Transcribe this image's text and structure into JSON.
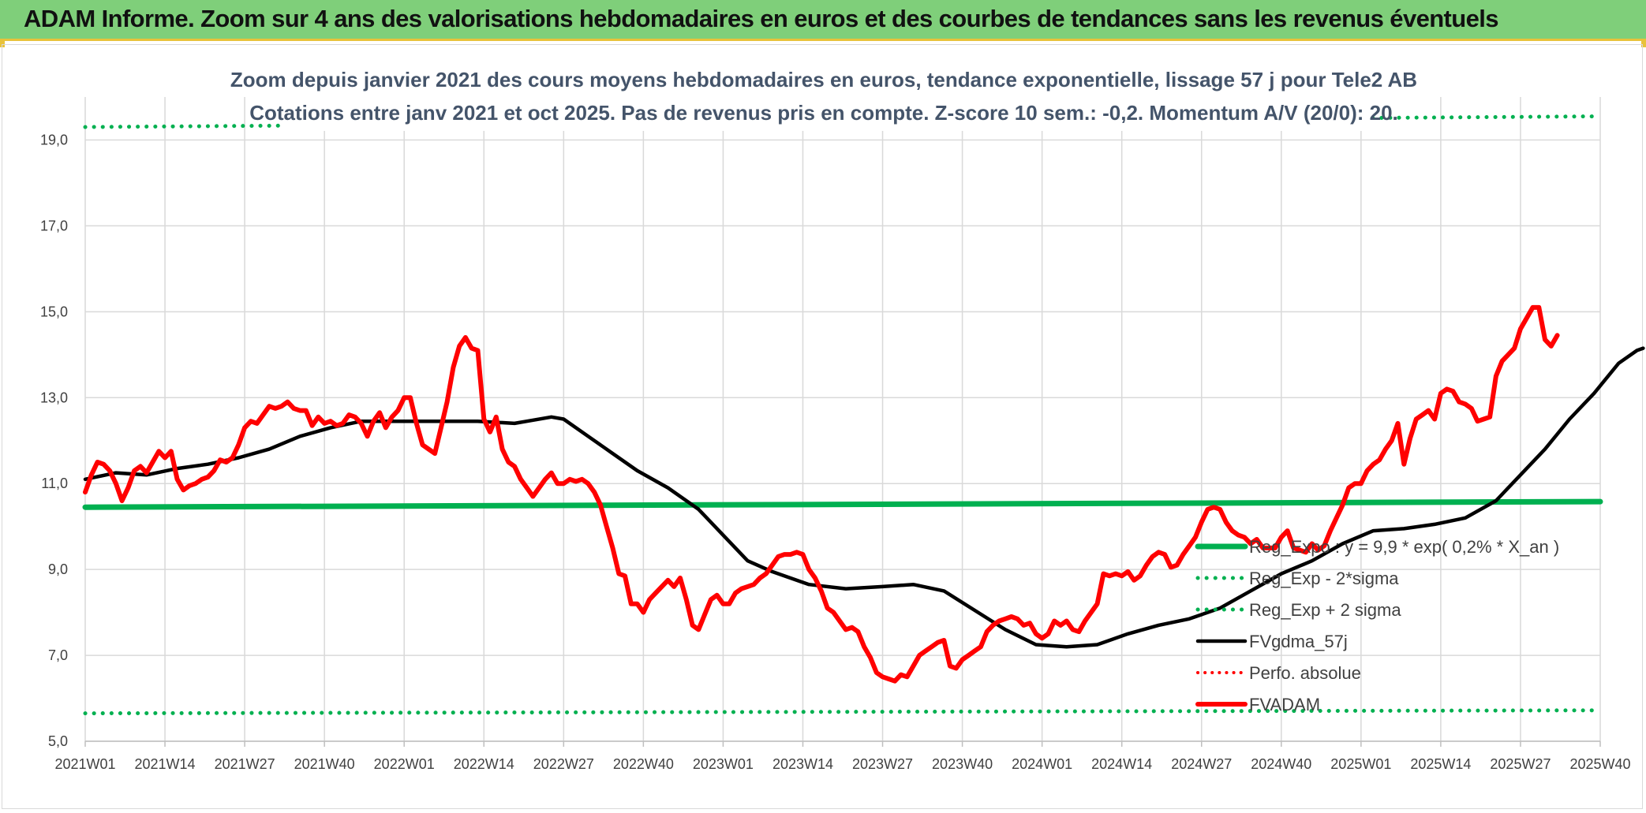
{
  "banner": {
    "title": "ADAM Informe. Zoom sur 4 ans des valorisations hebdomadaires en euros et des courbes de tendances sans les revenus éventuels"
  },
  "colors": {
    "banner_bg": "#7fcf7a",
    "accent_line": "#e8c23a",
    "regression": "#00b050",
    "fvgdma": "#000000",
    "fvadam": "#ff0000",
    "perfo": "#ff0000",
    "title_text": "#44546a"
  },
  "chart_data": {
    "type": "line",
    "title": "Zoom depuis janvier 2021 des cours moyens hebdomadaires en euros, tendance exponentielle, lissage 57 j pour Tele2 AB",
    "subtitle": "Cotations entre janv 2021 et oct 2025. Pas de revenus pris en compte. Z-score 10 sem.: -0,2. Momentum A/V (20/0): 20.",
    "x_tick_labels": [
      "2021W01",
      "2021W14",
      "2021W27",
      "2021W40",
      "2022W01",
      "2022W14",
      "2022W27",
      "2022W40",
      "2023W01",
      "2023W14",
      "2023W27",
      "2023W40",
      "2024W01",
      "2024W14",
      "2024W27",
      "2024W40",
      "2025W01",
      "2025W14",
      "2025W27",
      "2025W40"
    ],
    "y_tick_labels": [
      "5,0",
      "7,0",
      "9,0",
      "11,0",
      "13,0",
      "15,0",
      "17,0",
      "19,0"
    ],
    "ylim": [
      5,
      20
    ],
    "grid": true,
    "legend_position": "bottom-right",
    "weeks_total": 247,
    "series": [
      {
        "name": "Reg_Expo : y = 9,9 * exp( 0,2% *  X_an )",
        "color": "#00b050",
        "style": "solid",
        "points": [
          [
            0,
            10.45
          ],
          [
            247,
            10.58
          ]
        ]
      },
      {
        "name": "Reg_Exp - 2*sigma",
        "color": "#00b050",
        "style": "dotted",
        "points": [
          [
            0,
            5.65
          ],
          [
            247,
            5.72
          ]
        ]
      },
      {
        "name": "Reg_Exp + 2 sigma",
        "color": "#00b050",
        "style": "dotted",
        "points": [
          [
            0,
            19.3
          ],
          [
            247,
            19.55
          ]
        ]
      },
      {
        "name": "FVgdma_57j",
        "color": "#000000",
        "style": "solid",
        "points": [
          [
            0,
            11.1
          ],
          [
            5,
            11.25
          ],
          [
            10,
            11.2
          ],
          [
            15,
            11.35
          ],
          [
            20,
            11.45
          ],
          [
            25,
            11.6
          ],
          [
            30,
            11.8
          ],
          [
            35,
            12.1
          ],
          [
            40,
            12.3
          ],
          [
            45,
            12.45
          ],
          [
            52,
            12.45
          ],
          [
            58,
            12.45
          ],
          [
            64,
            12.45
          ],
          [
            70,
            12.4
          ],
          [
            72,
            12.45
          ],
          [
            76,
            12.55
          ],
          [
            78,
            12.5
          ],
          [
            82,
            12.1
          ],
          [
            86,
            11.7
          ],
          [
            90,
            11.3
          ],
          [
            95,
            10.9
          ],
          [
            100,
            10.4
          ],
          [
            104,
            9.8
          ],
          [
            108,
            9.2
          ],
          [
            112,
            8.95
          ],
          [
            118,
            8.65
          ],
          [
            124,
            8.55
          ],
          [
            130,
            8.6
          ],
          [
            135,
            8.65
          ],
          [
            140,
            8.5
          ],
          [
            145,
            8.05
          ],
          [
            150,
            7.6
          ],
          [
            155,
            7.25
          ],
          [
            160,
            7.2
          ],
          [
            165,
            7.25
          ],
          [
            170,
            7.5
          ],
          [
            175,
            7.7
          ],
          [
            180,
            7.85
          ],
          [
            185,
            8.1
          ],
          [
            190,
            8.5
          ],
          [
            195,
            8.9
          ],
          [
            200,
            9.2
          ],
          [
            205,
            9.6
          ],
          [
            210,
            9.9
          ],
          [
            215,
            9.95
          ],
          [
            220,
            10.05
          ],
          [
            225,
            10.2
          ],
          [
            230,
            10.6
          ],
          [
            234,
            11.2
          ],
          [
            238,
            11.8
          ],
          [
            242,
            12.5
          ],
          [
            246,
            13.1
          ],
          [
            250,
            13.8
          ],
          [
            253,
            14.1
          ],
          [
            254,
            14.15
          ]
        ]
      },
      {
        "name": "Perfo. absolue",
        "color": "#ff0000",
        "style": "dotted",
        "points": []
      },
      {
        "name": "FVADAM",
        "color": "#ff0000",
        "style": "solid",
        "points": [
          [
            0,
            10.8
          ],
          [
            1,
            11.2
          ],
          [
            2,
            11.5
          ],
          [
            3,
            11.45
          ],
          [
            4,
            11.3
          ],
          [
            5,
            11.0
          ],
          [
            6,
            10.6
          ],
          [
            7,
            10.9
          ],
          [
            8,
            11.3
          ],
          [
            9,
            11.4
          ],
          [
            10,
            11.25
          ],
          [
            11,
            11.5
          ],
          [
            12,
            11.75
          ],
          [
            13,
            11.6
          ],
          [
            14,
            11.75
          ],
          [
            15,
            11.1
          ],
          [
            16,
            10.85
          ],
          [
            17,
            10.95
          ],
          [
            18,
            11.0
          ],
          [
            19,
            11.1
          ],
          [
            20,
            11.15
          ],
          [
            21,
            11.3
          ],
          [
            22,
            11.55
          ],
          [
            23,
            11.5
          ],
          [
            24,
            11.6
          ],
          [
            25,
            11.9
          ],
          [
            26,
            12.3
          ],
          [
            27,
            12.45
          ],
          [
            28,
            12.4
          ],
          [
            29,
            12.6
          ],
          [
            30,
            12.8
          ],
          [
            31,
            12.75
          ],
          [
            32,
            12.8
          ],
          [
            33,
            12.9
          ],
          [
            34,
            12.75
          ],
          [
            35,
            12.7
          ],
          [
            36,
            12.7
          ],
          [
            37,
            12.35
          ],
          [
            38,
            12.55
          ],
          [
            39,
            12.4
          ],
          [
            40,
            12.45
          ],
          [
            41,
            12.35
          ],
          [
            42,
            12.4
          ],
          [
            43,
            12.6
          ],
          [
            44,
            12.55
          ],
          [
            45,
            12.4
          ],
          [
            46,
            12.1
          ],
          [
            47,
            12.45
          ],
          [
            48,
            12.65
          ],
          [
            49,
            12.3
          ],
          [
            50,
            12.55
          ],
          [
            51,
            12.7
          ],
          [
            52,
            13.0
          ],
          [
            53,
            13.0
          ],
          [
            54,
            12.4
          ],
          [
            55,
            11.9
          ],
          [
            56,
            11.8
          ],
          [
            57,
            11.7
          ],
          [
            58,
            12.3
          ],
          [
            59,
            12.9
          ],
          [
            60,
            13.7
          ],
          [
            61,
            14.2
          ],
          [
            62,
            14.4
          ],
          [
            63,
            14.15
          ],
          [
            64,
            14.1
          ],
          [
            65,
            12.5
          ],
          [
            66,
            12.2
          ],
          [
            67,
            12.55
          ],
          [
            68,
            11.8
          ],
          [
            69,
            11.5
          ],
          [
            70,
            11.4
          ],
          [
            71,
            11.1
          ],
          [
            72,
            10.9
          ],
          [
            73,
            10.7
          ],
          [
            74,
            10.9
          ],
          [
            75,
            11.1
          ],
          [
            76,
            11.25
          ],
          [
            77,
            11.0
          ],
          [
            78,
            11.0
          ],
          [
            79,
            11.1
          ],
          [
            80,
            11.05
          ],
          [
            81,
            11.1
          ],
          [
            82,
            11.0
          ],
          [
            83,
            10.8
          ],
          [
            84,
            10.5
          ],
          [
            85,
            10.0
          ],
          [
            86,
            9.5
          ],
          [
            87,
            8.9
          ],
          [
            88,
            8.85
          ],
          [
            89,
            8.2
          ],
          [
            90,
            8.2
          ],
          [
            91,
            8.0
          ],
          [
            92,
            8.3
          ],
          [
            93,
            8.45
          ],
          [
            94,
            8.6
          ],
          [
            95,
            8.75
          ],
          [
            96,
            8.6
          ],
          [
            97,
            8.8
          ],
          [
            98,
            8.3
          ],
          [
            99,
            7.7
          ],
          [
            100,
            7.6
          ],
          [
            101,
            7.95
          ],
          [
            102,
            8.3
          ],
          [
            103,
            8.4
          ],
          [
            104,
            8.2
          ],
          [
            105,
            8.2
          ],
          [
            106,
            8.45
          ],
          [
            107,
            8.55
          ],
          [
            108,
            8.6
          ],
          [
            109,
            8.65
          ],
          [
            110,
            8.8
          ],
          [
            111,
            8.9
          ],
          [
            112,
            9.1
          ],
          [
            113,
            9.3
          ],
          [
            114,
            9.35
          ],
          [
            115,
            9.35
          ],
          [
            116,
            9.4
          ],
          [
            117,
            9.35
          ],
          [
            118,
            9.0
          ],
          [
            119,
            8.8
          ],
          [
            120,
            8.5
          ],
          [
            121,
            8.1
          ],
          [
            122,
            8.0
          ],
          [
            123,
            7.8
          ],
          [
            124,
            7.6
          ],
          [
            125,
            7.65
          ],
          [
            126,
            7.55
          ],
          [
            127,
            7.2
          ],
          [
            128,
            6.95
          ],
          [
            129,
            6.6
          ],
          [
            130,
            6.5
          ],
          [
            131,
            6.45
          ],
          [
            132,
            6.4
          ],
          [
            133,
            6.55
          ],
          [
            134,
            6.5
          ],
          [
            135,
            6.75
          ],
          [
            136,
            7.0
          ],
          [
            137,
            7.1
          ],
          [
            138,
            7.2
          ],
          [
            139,
            7.3
          ],
          [
            140,
            7.35
          ],
          [
            141,
            6.75
          ],
          [
            142,
            6.7
          ],
          [
            143,
            6.9
          ],
          [
            144,
            7.0
          ],
          [
            145,
            7.1
          ],
          [
            146,
            7.2
          ],
          [
            147,
            7.55
          ],
          [
            148,
            7.7
          ],
          [
            149,
            7.8
          ],
          [
            150,
            7.85
          ],
          [
            151,
            7.9
          ],
          [
            152,
            7.85
          ],
          [
            153,
            7.7
          ],
          [
            154,
            7.75
          ],
          [
            155,
            7.5
          ],
          [
            156,
            7.4
          ],
          [
            157,
            7.5
          ],
          [
            158,
            7.8
          ],
          [
            159,
            7.7
          ],
          [
            160,
            7.8
          ],
          [
            161,
            7.6
          ],
          [
            162,
            7.55
          ],
          [
            163,
            7.8
          ],
          [
            164,
            8.0
          ],
          [
            165,
            8.2
          ],
          [
            166,
            8.9
          ],
          [
            167,
            8.85
          ],
          [
            168,
            8.9
          ],
          [
            169,
            8.85
          ],
          [
            170,
            8.95
          ],
          [
            171,
            8.75
          ],
          [
            172,
            8.85
          ],
          [
            173,
            9.1
          ],
          [
            174,
            9.3
          ],
          [
            175,
            9.4
          ],
          [
            176,
            9.35
          ],
          [
            177,
            9.05
          ],
          [
            178,
            9.1
          ],
          [
            179,
            9.35
          ],
          [
            180,
            9.55
          ],
          [
            181,
            9.75
          ],
          [
            182,
            10.1
          ],
          [
            183,
            10.4
          ],
          [
            184,
            10.45
          ],
          [
            185,
            10.4
          ],
          [
            186,
            10.1
          ],
          [
            187,
            9.9
          ],
          [
            188,
            9.8
          ],
          [
            189,
            9.75
          ],
          [
            190,
            9.6
          ],
          [
            191,
            9.7
          ],
          [
            192,
            9.5
          ],
          [
            193,
            9.5
          ],
          [
            194,
            9.5
          ],
          [
            195,
            9.75
          ],
          [
            196,
            9.9
          ],
          [
            197,
            9.5
          ],
          [
            198,
            9.45
          ],
          [
            199,
            9.4
          ],
          [
            200,
            9.6
          ],
          [
            201,
            9.45
          ],
          [
            202,
            9.55
          ],
          [
            203,
            9.9
          ],
          [
            204,
            10.2
          ],
          [
            205,
            10.5
          ],
          [
            206,
            10.9
          ],
          [
            207,
            11.0
          ],
          [
            208,
            11.0
          ],
          [
            209,
            11.3
          ],
          [
            210,
            11.45
          ],
          [
            211,
            11.55
          ],
          [
            212,
            11.8
          ],
          [
            213,
            12.0
          ],
          [
            214,
            12.4
          ],
          [
            215,
            11.45
          ],
          [
            216,
            12.05
          ],
          [
            217,
            12.5
          ],
          [
            218,
            12.6
          ],
          [
            219,
            12.7
          ],
          [
            220,
            12.5
          ],
          [
            221,
            13.1
          ],
          [
            222,
            13.2
          ],
          [
            223,
            13.15
          ],
          [
            224,
            12.9
          ],
          [
            225,
            12.85
          ],
          [
            226,
            12.75
          ],
          [
            227,
            12.45
          ],
          [
            228,
            12.5
          ],
          [
            229,
            12.55
          ],
          [
            230,
            13.5
          ],
          [
            231,
            13.85
          ],
          [
            232,
            14.0
          ],
          [
            233,
            14.15
          ],
          [
            234,
            14.6
          ],
          [
            235,
            14.85
          ],
          [
            236,
            15.1
          ],
          [
            237,
            15.1
          ],
          [
            238,
            14.35
          ],
          [
            239,
            14.2
          ],
          [
            240,
            14.45
          ]
        ]
      }
    ],
    "legend": [
      "Reg_Expo : y = 9,9 * exp( 0,2% *  X_an )",
      "Reg_Exp - 2*sigma",
      "Reg_Exp + 2 sigma",
      "FVgdma_57j",
      "Perfo. absolue",
      "FVADAM"
    ]
  }
}
